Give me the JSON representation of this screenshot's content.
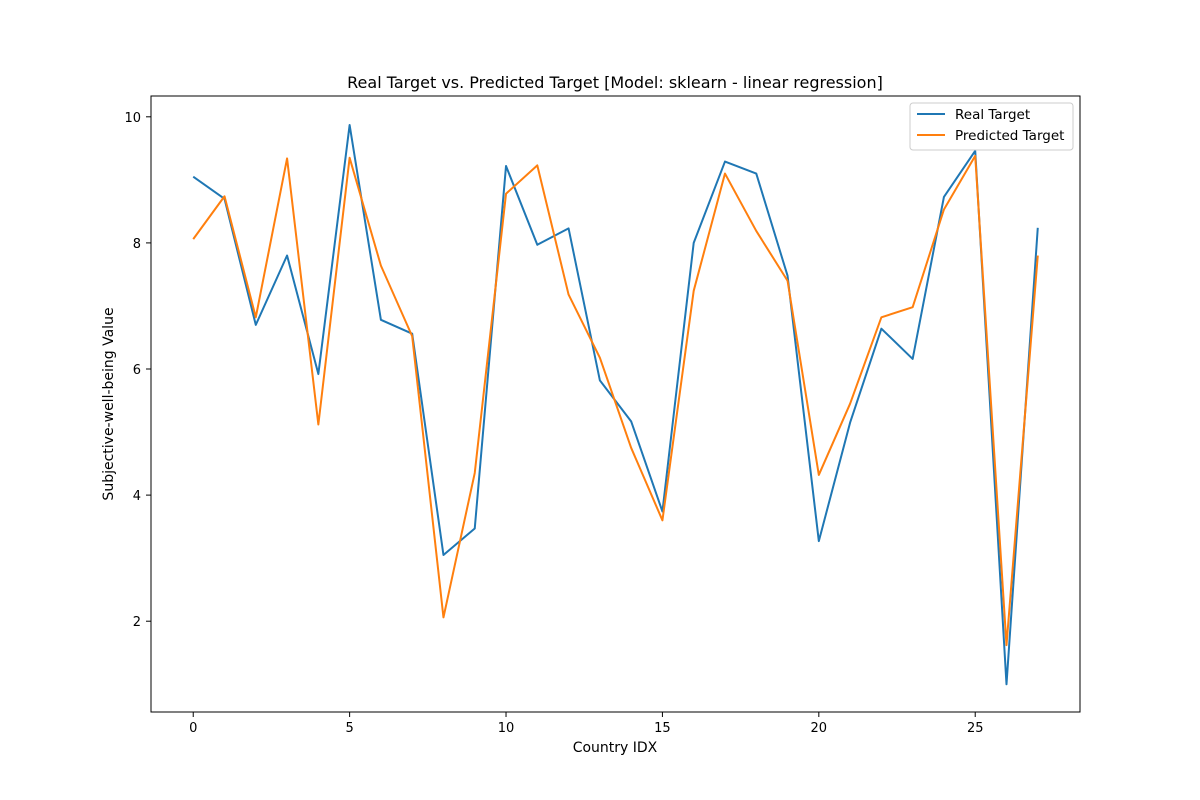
{
  "chart_data": {
    "type": "line",
    "title": "Real Target vs. Predicted Target [Model: sklearn - linear regression]",
    "xlabel": "Country IDX",
    "ylabel": "Subjective-well-being Value",
    "xlim": [
      -1.35,
      28.35
    ],
    "ylim": [
      0.56,
      10.33
    ],
    "xticks": [
      0,
      5,
      10,
      15,
      20,
      25
    ],
    "yticks": [
      2,
      4,
      6,
      8,
      10
    ],
    "grid": false,
    "legend_position": "top-right",
    "x": [
      0,
      1,
      2,
      3,
      4,
      5,
      6,
      7,
      8,
      9,
      10,
      11,
      12,
      13,
      14,
      15,
      16,
      17,
      18,
      19,
      20,
      21,
      22,
      23,
      24,
      25,
      26,
      27
    ],
    "series": [
      {
        "name": "Real Target",
        "color": "#1f77b4",
        "values": [
          9.05,
          8.7,
          6.7,
          7.8,
          5.92,
          9.87,
          6.78,
          6.56,
          3.05,
          3.47,
          9.22,
          7.97,
          8.23,
          5.82,
          5.17,
          3.74,
          8.0,
          9.29,
          9.1,
          7.48,
          3.27,
          5.15,
          6.64,
          6.16,
          8.73,
          9.46,
          1.0,
          8.24
        ]
      },
      {
        "name": "Predicted Target",
        "color": "#ff7f0e",
        "values": [
          8.06,
          8.74,
          6.82,
          9.34,
          5.12,
          9.35,
          7.64,
          6.52,
          2.06,
          4.35,
          8.78,
          9.23,
          7.18,
          6.18,
          4.75,
          3.6,
          7.24,
          9.1,
          8.19,
          7.4,
          4.32,
          5.45,
          6.82,
          6.98,
          8.53,
          9.38,
          1.62,
          7.8
        ]
      }
    ]
  }
}
